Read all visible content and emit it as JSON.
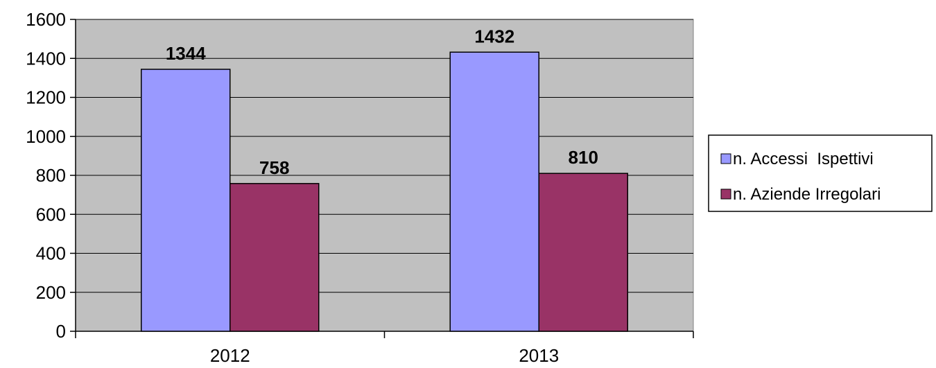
{
  "chart_data": {
    "type": "bar",
    "categories": [
      "2012",
      "2013"
    ],
    "series": [
      {
        "name": "n. Accessi  Ispettivi",
        "values": [
          1344,
          1432
        ],
        "color": "#9999ff"
      },
      {
        "name": "n. Aziende Irregolari",
        "values": [
          758,
          810
        ],
        "color": "#993366"
      }
    ],
    "title": "",
    "xlabel": "",
    "ylabel": "",
    "ylim": [
      0,
      1600
    ],
    "yticks": [
      0,
      200,
      400,
      600,
      800,
      1000,
      1200,
      1400,
      1600
    ],
    "grid": true,
    "legend": "right",
    "plot_background": "#c0c0c0"
  }
}
